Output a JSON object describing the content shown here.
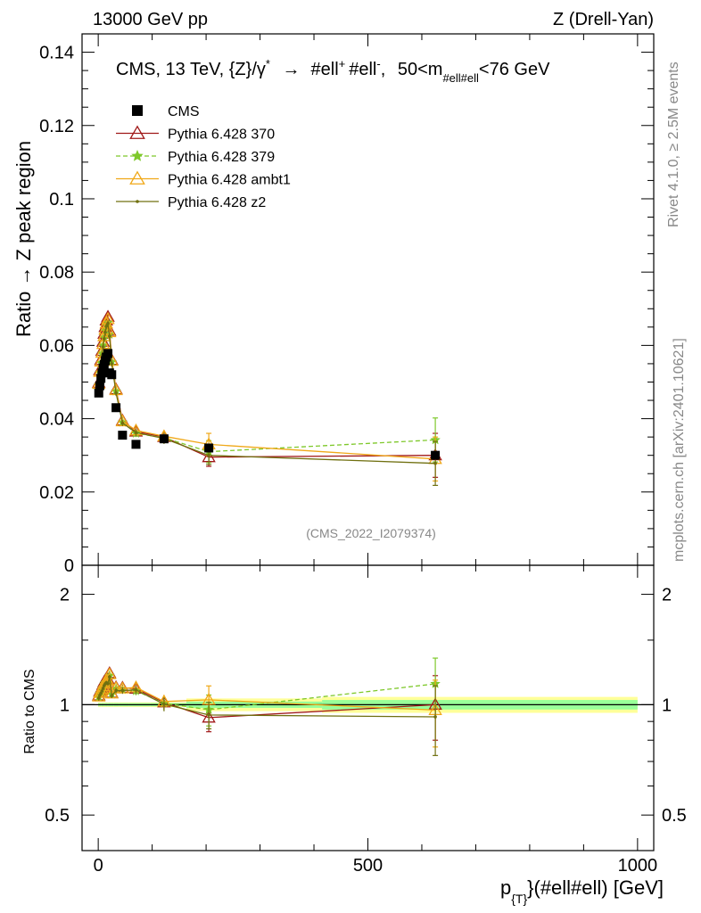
{
  "header": {
    "left": "13000 GeV pp",
    "right": "Z (Drell-Yan)"
  },
  "side": {
    "rivet": "Rivet 4.1.0, ≥ 2.5M events",
    "mcplots": "mcplots.cern.ch [arXiv:2401.10621]"
  },
  "chart_data": {
    "type": "scatter",
    "title": "CMS, 13 TeV, {Z}/γ* → #ell⁺ #ell⁻, 50<m_{#ell#ell}<76 GeV",
    "title_parts": {
      "main": "CMS, 13 TeV, {Z}/γ",
      "star": "*",
      "arrow": "→",
      "l1": "#ell",
      "plus": "+",
      "l2": "#ell",
      "minus": "-",
      "mass": "50<m",
      "mass_sub": "#ell#ell",
      "mass_tail": "<76 GeV"
    },
    "watermark": "(CMS_2022_I2079374)",
    "xlabel": {
      "main": "p",
      "sub": "{T}",
      "tail": "}(#ell#ell) [GeV]"
    },
    "ylabel": "Ratio → Z peak region",
    "ratio_ylabel": "Ratio to CMS",
    "xlim": [
      -30,
      1030
    ],
    "ylim": [
      0,
      0.145
    ],
    "ratio_ylim": [
      0.4,
      2.4
    ],
    "x_ticks": [
      0,
      500,
      1000
    ],
    "x_tick_labels": [
      "0",
      "500",
      "1000"
    ],
    "y_ticks": [
      0,
      0.02,
      0.04,
      0.06,
      0.08,
      0.1,
      0.12,
      0.14
    ],
    "y_tick_labels": [
      "0",
      "0.02",
      "0.04",
      "0.06",
      "0.08",
      "0.1",
      "0.12",
      "0.14"
    ],
    "ratio_ticks": [
      0.5,
      1,
      2
    ],
    "ratio_tick_labels": [
      "0.5",
      "1",
      "2"
    ],
    "x": [
      1,
      3,
      5,
      7,
      9,
      11,
      13,
      15,
      18,
      21,
      25,
      33,
      45,
      70,
      122,
      205,
      625
    ],
    "series": [
      {
        "name": "CMS",
        "color": "#000000",
        "marker": "square",
        "values": [
          0.047,
          0.049,
          0.051,
          0.0525,
          0.0538,
          0.0548,
          0.0558,
          0.0568,
          0.0578,
          0.0525,
          0.052,
          0.043,
          0.0355,
          0.033,
          0.0345,
          0.032,
          0.03
        ],
        "band": [
          0.015,
          0.015,
          0.015,
          0.015,
          0.015,
          0.015,
          0.015,
          0.015,
          0.015,
          0.015,
          0.015,
          0.015,
          0.015,
          0.015,
          0.015,
          0.04,
          0.05
        ],
        "band_stat": [
          0.01,
          0.01,
          0.01,
          0.01,
          0.01,
          0.01,
          0.01,
          0.01,
          0.01,
          0.01,
          0.01,
          0.01,
          0.01,
          0.01,
          0.01,
          0.02,
          0.03
        ]
      },
      {
        "name": "Pythia 6.428 370",
        "color": "#a01818",
        "marker": "triangle",
        "dash": "",
        "values": [
          0.0498,
          0.0532,
          0.056,
          0.0585,
          0.061,
          0.0632,
          0.065,
          0.0668,
          0.0678,
          0.064,
          0.056,
          0.048,
          0.0395,
          0.0365,
          0.035,
          0.0295,
          0.03
        ],
        "errors": [
          0.0008,
          0.0008,
          0.0008,
          0.0008,
          0.0008,
          0.0008,
          0.0008,
          0.0008,
          0.0008,
          0.0008,
          0.0008,
          0.0008,
          0.0008,
          0.001,
          0.0015,
          0.0025,
          0.006
        ]
      },
      {
        "name": "Pythia 6.428 379",
        "color": "#7ec82a",
        "marker": "star",
        "dash": "5,3",
        "values": [
          0.0492,
          0.0525,
          0.0552,
          0.0578,
          0.06,
          0.0622,
          0.064,
          0.0655,
          0.0662,
          0.063,
          0.0555,
          0.0475,
          0.039,
          0.036,
          0.0348,
          0.031,
          0.0342
        ],
        "errors": [
          0.0008,
          0.0008,
          0.0008,
          0.0008,
          0.0008,
          0.0008,
          0.0008,
          0.0008,
          0.0008,
          0.0008,
          0.0008,
          0.0008,
          0.0008,
          0.001,
          0.0015,
          0.003,
          0.006
        ]
      },
      {
        "name": "Pythia 6.428 ambt1",
        "color": "#f0a818",
        "marker": "triangle",
        "dash": "",
        "values": [
          0.0495,
          0.0528,
          0.0556,
          0.058,
          0.0604,
          0.0625,
          0.0643,
          0.066,
          0.0672,
          0.0636,
          0.0558,
          0.0478,
          0.0393,
          0.0368,
          0.0352,
          0.033,
          0.029
        ],
        "errors": [
          0.0008,
          0.0008,
          0.0008,
          0.0008,
          0.0008,
          0.0008,
          0.0008,
          0.0008,
          0.0008,
          0.0008,
          0.0008,
          0.0008,
          0.0008,
          0.001,
          0.0015,
          0.003,
          0.006
        ]
      },
      {
        "name": "Pythia 6.428 z2",
        "color": "#707010",
        "marker": "dot",
        "dash": "",
        "values": [
          0.049,
          0.052,
          0.0548,
          0.0572,
          0.0596,
          0.0618,
          0.0636,
          0.0652,
          0.066,
          0.0625,
          0.055,
          0.047,
          0.0388,
          0.0362,
          0.0346,
          0.03,
          0.0278
        ],
        "errors": [
          0.0008,
          0.0008,
          0.0008,
          0.0008,
          0.0008,
          0.0008,
          0.0008,
          0.0008,
          0.0008,
          0.0008,
          0.0008,
          0.0008,
          0.0008,
          0.001,
          0.0015,
          0.0025,
          0.006
        ]
      }
    ],
    "legend": [
      "CMS",
      "Pythia 6.428 370",
      "Pythia 6.428 379",
      "Pythia 6.428 ambt1",
      "Pythia 6.428 z2"
    ],
    "legend_position": "top-left"
  }
}
